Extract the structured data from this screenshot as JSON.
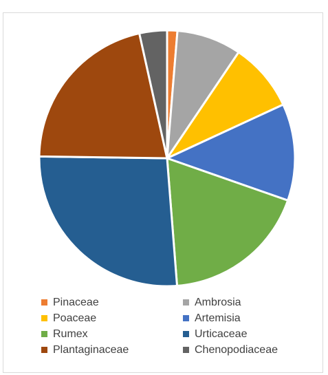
{
  "chart_data": {
    "type": "pie",
    "title": "",
    "slices": [
      {
        "label": "Pinaceae",
        "value": 1.3,
        "color": "#ED7D31"
      },
      {
        "label": "Ambrosia",
        "value": 8.2,
        "color": "#A5A5A5"
      },
      {
        "label": "Poaceae",
        "value": 8.7,
        "color": "#FFC000"
      },
      {
        "label": "Artemisia",
        "value": 12.3,
        "color": "#4472C4"
      },
      {
        "label": "Rumex",
        "value": 18.5,
        "color": "#70AD47"
      },
      {
        "label": "Urticaceae",
        "value": 26.6,
        "color": "#255E91"
      },
      {
        "label": "Plantaginaceae",
        "value": 21.4,
        "color": "#9E480E"
      },
      {
        "label": "Chenopodiaceae",
        "value": 3.5,
        "color": "#636363"
      }
    ],
    "legend_position": "bottom"
  }
}
